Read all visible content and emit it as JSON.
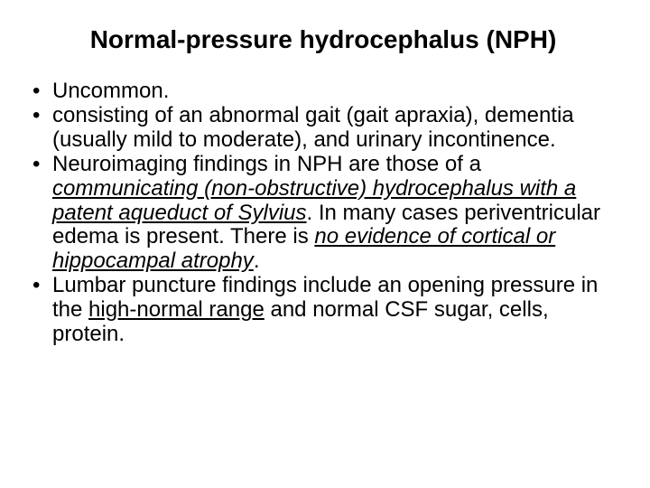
{
  "colors": {
    "background": "#ffffff",
    "text": "#000000"
  },
  "typography": {
    "family": "Arial",
    "title_fontsize": 28,
    "title_weight": "bold",
    "body_fontsize": 24,
    "line_height": 1.12
  },
  "title": "Normal-pressure hydrocephalus (NPH)",
  "bullets": [
    {
      "segments": [
        {
          "text": "Uncommon."
        }
      ]
    },
    {
      "segments": [
        {
          "text": "consisting of an abnormal gait (gait apraxia), dementia (usually mild to moderate), and urinary incontinence."
        }
      ]
    },
    {
      "segments": [
        {
          "text": "Neuroimaging findings in NPH are those of a "
        },
        {
          "text": "communicating (non-obstructive) hydrocephalus with a patent aqueduct of Sylvius",
          "style": "underline-italic"
        },
        {
          "text": ". In many cases periventricular edema is present. There is "
        },
        {
          "text": "no evidence of cortical or hippocampal atrophy",
          "style": "underline-italic"
        },
        {
          "text": "."
        }
      ]
    },
    {
      "segments": [
        {
          "text": "Lumbar puncture findings include an opening pressure in the "
        },
        {
          "text": "high-normal range",
          "style": "underline"
        },
        {
          "text": " and normal CSF sugar, cells, protein."
        }
      ]
    }
  ]
}
